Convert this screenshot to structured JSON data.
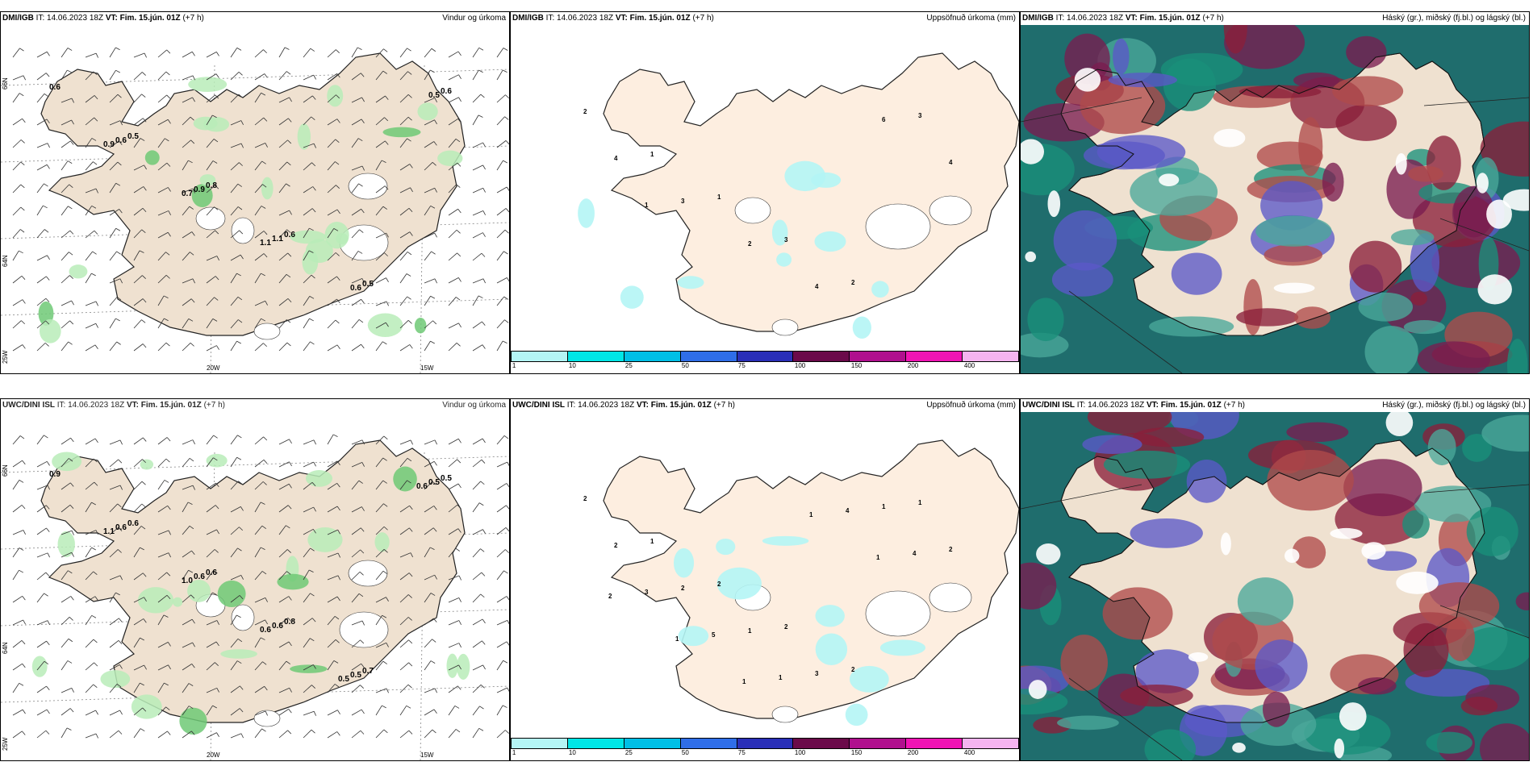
{
  "panels": [
    {
      "source": "DMI/IGB",
      "it": "IT: 14.06.2023 18Z",
      "vt": "VT: Fim. 15.jún. 01Z",
      "offset": "(+7 h)",
      "product": "Vindur og úrkoma"
    },
    {
      "source": "DMI/IGB",
      "it": "IT: 14.06.2023 18Z",
      "vt": "VT: Fim. 15.jún. 01Z",
      "offset": "(+7 h)",
      "product": "Uppsöfnuð úrkoma (mm)"
    },
    {
      "source": "DMI/IGB",
      "it": "IT: 14.06.2023 18Z",
      "vt": "VT: Fim. 15.jún. 01Z",
      "offset": "(+7 h)",
      "product": "Háský (gr.), miðský (fj.bl.) og lágský (bl.)"
    },
    {
      "source": "UWC/DINI ISL",
      "it": "IT: 14.06.2023 18Z",
      "vt": "VT: Fim. 15.jún. 01Z",
      "offset": "(+7 h)",
      "product": "Vindur og úrkoma"
    },
    {
      "source": "UWC/DINI ISL",
      "it": "IT: 14.06.2023 18Z",
      "vt": "VT: Fim. 15.jún. 01Z",
      "offset": "(+7 h)",
      "product": "Uppsöfnuð úrkoma (mm)"
    },
    {
      "source": "UWC/DINI ISL",
      "it": "IT: 14.06.2023 18Z",
      "vt": "VT: Fim. 15.jún. 01Z",
      "offset": "(+7 h)",
      "product": "Háský (gr.), miðský (fj.bl.) og lágský (bl.)"
    }
  ],
  "axes": {
    "lon_labels": [
      "20W",
      "15W"
    ],
    "lat_labels": [
      "66N",
      "64N",
      "25W"
    ]
  },
  "colorbar": {
    "labels": [
      "1",
      "10",
      "25",
      "50",
      "75",
      "100",
      "150",
      "200",
      "400"
    ],
    "colors": [
      "#b4f5f5",
      "#00e6e6",
      "#00bfe6",
      "#2f6ee8",
      "#2a2fb8",
      "#6b0a4a",
      "#b0108e",
      "#f014b4",
      "#f5b4f0"
    ]
  },
  "wind_precip_top": [
    "0.6",
    "0.5",
    "0.8",
    "0.6",
    "0.5",
    "0.6",
    "0.6",
    "0.9",
    "1.1",
    "0.6",
    "0.5",
    "0.9",
    "0.7",
    "1.1"
  ],
  "wind_precip_bottom": [
    "0.9",
    "0.6",
    "0.6",
    "0.8",
    "0.7",
    "0.5",
    "0.6",
    "0.6",
    "0.6",
    "0.5",
    "0.5",
    "1.1",
    "1.0",
    "0.6",
    "0.5",
    "0.6"
  ],
  "accum_top": [
    "2",
    "1",
    "1",
    "3",
    "2",
    "3",
    "4",
    "3",
    "2",
    "4",
    "6",
    "4",
    "1"
  ],
  "accum_bottom": [
    "2",
    "1",
    "2",
    "2",
    "2",
    "1",
    "2",
    "2",
    "1",
    "3",
    "1",
    "2",
    "3",
    "5",
    "1",
    "4",
    "4",
    "2",
    "1",
    "1",
    "1",
    "1"
  ]
}
